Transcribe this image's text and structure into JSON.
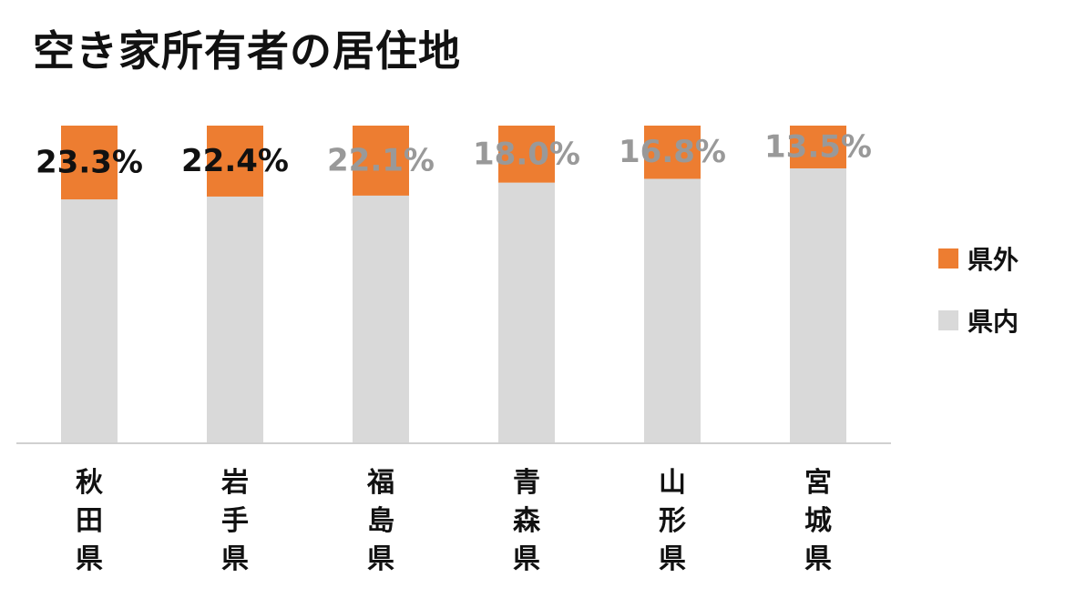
{
  "chart_data": {
    "type": "bar",
    "stacked": true,
    "percent": true,
    "title": "空き家所有者の居住地",
    "categories": [
      "秋田県",
      "岩手県",
      "福島県",
      "青森県",
      "山形県",
      "宮城県"
    ],
    "series": [
      {
        "name": "県内",
        "values": [
          76.7,
          77.6,
          77.9,
          82.0,
          83.2,
          86.5
        ],
        "color": "#d9d9d9"
      },
      {
        "name": "県外",
        "values": [
          23.3,
          22.4,
          22.1,
          18.0,
          16.8,
          13.5
        ],
        "color": "#ed7d31"
      }
    ],
    "data_labels": [
      "23.3%",
      "22.4%",
      "22.1%",
      "18.0%",
      "16.8%",
      "13.5%"
    ],
    "data_label_colors": [
      "#111111",
      "#111111",
      "#999999",
      "#999999",
      "#999999",
      "#999999"
    ],
    "ylim": [
      0,
      100
    ],
    "legend_position": "right",
    "grid": false
  }
}
